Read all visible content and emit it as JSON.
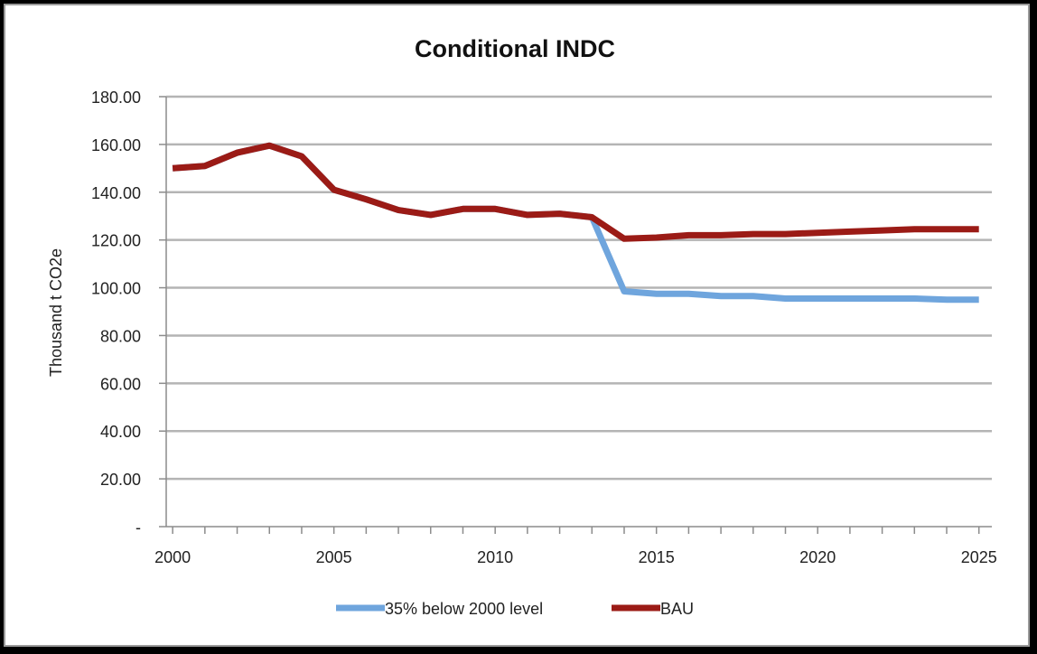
{
  "chart_data": {
    "type": "line",
    "title": "Conditional INDC",
    "xlabel": "",
    "ylabel": "Thousand t CO2e",
    "x": [
      2000,
      2001,
      2002,
      2003,
      2004,
      2005,
      2006,
      2007,
      2008,
      2009,
      2010,
      2011,
      2012,
      2013,
      2014,
      2015,
      2016,
      2017,
      2018,
      2019,
      2020,
      2021,
      2022,
      2023,
      2024,
      2025
    ],
    "x_ticks": [
      "2000",
      "2005",
      "2010",
      "2015",
      "2020",
      "2025"
    ],
    "x_tick_values": [
      2000,
      2005,
      2010,
      2015,
      2020,
      2025
    ],
    "xlim": [
      1999.8,
      2025.4
    ],
    "ylim": [
      0,
      180
    ],
    "y_ticks": [
      "-",
      "20.00",
      "40.00",
      "60.00",
      "80.00",
      "100.00",
      "120.00",
      "140.00",
      "160.00",
      "180.00"
    ],
    "y_tick_values": [
      0,
      20,
      40,
      60,
      80,
      100,
      120,
      140,
      160,
      180
    ],
    "grid": true,
    "legend_position": "bottom",
    "series": [
      {
        "name": "35% below 2000 level",
        "color": "#6fa5dd",
        "values": [
          150,
          151,
          156.5,
          159.5,
          155,
          141,
          137,
          132.5,
          130.5,
          133,
          133,
          130.5,
          131,
          129.5,
          98.5,
          97.5,
          97.5,
          96.5,
          96.5,
          95.5,
          95.5,
          95.5,
          95.5,
          95.5,
          95,
          95
        ]
      },
      {
        "name": "BAU",
        "color": "#9b1b16",
        "values": [
          150,
          151,
          156.5,
          159.5,
          155,
          141,
          137,
          132.5,
          130.5,
          133,
          133,
          130.5,
          131,
          129.5,
          120.5,
          121,
          122,
          122,
          122.5,
          122.5,
          123,
          123.5,
          124,
          124.5,
          124.5,
          124.5
        ]
      }
    ]
  }
}
